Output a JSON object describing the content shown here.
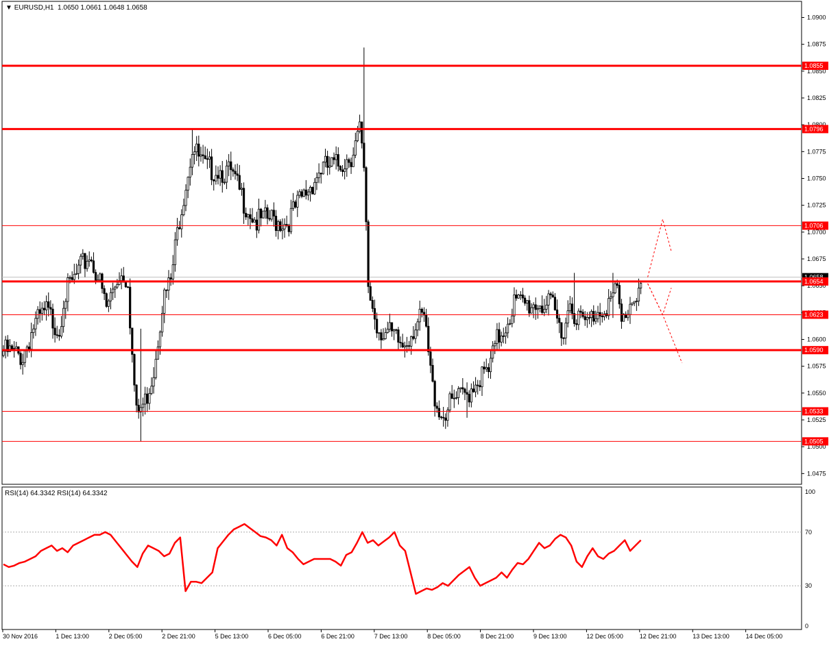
{
  "header": {
    "symbol": "EURUSD,H1",
    "ohlc": "1.0650 1.0661 1.0648 1.0658"
  },
  "rsi_header": "RSI(14) 64.3342  RSI(14) 64.3342",
  "colors": {
    "background": "#ffffff",
    "candle": "#000000",
    "level_line": "#ff0000",
    "rsi_line": "#ff0000",
    "label_bg": "#ff0000",
    "label_text": "#ffffff"
  },
  "chart_data": [
    {
      "type": "candlestick",
      "title": "EURUSD,H1",
      "ylim": [
        1.0465,
        1.0915
      ],
      "y_ticks": [
        "1.0475",
        "1.0500",
        "1.0525",
        "1.0550",
        "1.0575",
        "1.0600",
        "1.0625",
        "1.0650",
        "1.0675",
        "1.0700",
        "1.0725",
        "1.0750",
        "1.0775",
        "1.0800",
        "1.0825",
        "1.0850",
        "1.0875",
        "1.0900"
      ],
      "current_price": "1.0658",
      "x_ticks": [
        "30 Nov 2016",
        "1 Dec 13:00",
        "2 Dec 05:00",
        "2 Dec 21:00",
        "5 Dec 13:00",
        "6 Dec 05:00",
        "6 Dec 21:00",
        "7 Dec 13:00",
        "8 Dec 05:00",
        "8 Dec 21:00",
        "9 Dec 13:00",
        "12 Dec 05:00",
        "12 Dec 21:00",
        "13 Dec 13:00",
        "14 Dec 05:00"
      ],
      "levels": [
        {
          "price": 1.0855,
          "label": "1.0855",
          "weight": "thick"
        },
        {
          "price": 1.0796,
          "label": "1.0796",
          "weight": "thick"
        },
        {
          "price": 1.0706,
          "label": "1.0706",
          "weight": "thin"
        },
        {
          "price": 1.0654,
          "label": "1.0654",
          "weight": "thick"
        },
        {
          "price": 1.0623,
          "label": "1.0623",
          "weight": "thin"
        },
        {
          "price": 1.059,
          "label": "1.0590",
          "weight": "thick"
        },
        {
          "price": 1.0533,
          "label": "1.0533",
          "weight": "thin"
        },
        {
          "price": 1.0505,
          "label": "1.0505",
          "weight": "thin"
        }
      ],
      "anchors": [
        [
          0,
          1.0595
        ],
        [
          9,
          1.059
        ],
        [
          14,
          1.0618
        ],
        [
          20,
          1.0632
        ],
        [
          26,
          1.0615
        ],
        [
          28,
          1.0645
        ],
        [
          34,
          1.0665
        ],
        [
          40,
          1.0685
        ],
        [
          44,
          1.0665
        ],
        [
          48,
          1.0635
        ],
        [
          54,
          1.0668
        ],
        [
          58,
          1.0663
        ],
        [
          60,
          1.059
        ],
        [
          62,
          1.0535
        ],
        [
          66,
          1.0548
        ],
        [
          70,
          1.0578
        ],
        [
          74,
          1.064
        ],
        [
          78,
          1.066
        ],
        [
          82,
          1.072
        ],
        [
          88,
          1.0785
        ],
        [
          94,
          1.0765
        ],
        [
          100,
          1.0765
        ],
        [
          106,
          1.076
        ],
        [
          112,
          1.0735
        ],
        [
          118,
          1.0715
        ],
        [
          124,
          1.0718
        ],
        [
          132,
          1.0715
        ],
        [
          140,
          1.074
        ],
        [
          148,
          1.0765
        ],
        [
          156,
          1.0768
        ],
        [
          162,
          1.0778
        ],
        [
          166,
          1.08
        ],
        [
          168,
          1.076
        ],
        [
          170,
          1.0655
        ],
        [
          174,
          1.0618
        ],
        [
          180,
          1.061
        ],
        [
          186,
          1.06
        ],
        [
          192,
          1.062
        ],
        [
          196,
          1.0625
        ],
        [
          200,
          1.056
        ],
        [
          204,
          1.0535
        ],
        [
          210,
          1.0548
        ],
        [
          216,
          1.0555
        ],
        [
          220,
          1.0568
        ],
        [
          226,
          1.0575
        ],
        [
          230,
          1.0605
        ],
        [
          234,
          1.062
        ],
        [
          238,
          1.064
        ],
        [
          244,
          1.0638
        ],
        [
          250,
          1.064
        ],
        [
          256,
          1.0635
        ],
        [
          260,
          1.0612
        ],
        [
          264,
          1.064
        ],
        [
          268,
          1.0625
        ],
        [
          272,
          1.062
        ],
        [
          276,
          1.0632
        ],
        [
          282,
          1.064
        ],
        [
          286,
          1.065
        ],
        [
          288,
          1.062
        ],
        [
          292,
          1.064
        ],
        [
          295,
          1.065
        ],
        [
          297,
          1.0658
        ]
      ],
      "wicks": [
        {
          "bar": 64,
          "high": 1.061,
          "low": 1.0505
        },
        {
          "bar": 168,
          "high": 1.0872,
          "low": 1.076
        },
        {
          "bar": 88,
          "high": 1.0796,
          "low": 1.077
        },
        {
          "bar": 216,
          "high": 1.056,
          "low": 1.0527
        },
        {
          "bar": 266,
          "high": 1.0662,
          "low": 1.0612
        },
        {
          "bar": 284,
          "high": 1.0662,
          "low": 1.062
        }
      ],
      "projection_arrows": [
        [
          [
            1.0658,
            0
          ],
          [
            1.0712,
            7
          ],
          [
            1.0682,
            11
          ]
        ],
        [
          [
            1.0652,
            0
          ],
          [
            1.0623,
            7
          ],
          [
            1.0648,
            11
          ]
        ],
        [
          [
            1.0652,
            0
          ],
          [
            1.0623,
            7
          ],
          [
            1.0578,
            16
          ]
        ]
      ]
    },
    {
      "type": "line",
      "title": "RSI(14) 64.3342",
      "ylim": [
        0,
        100
      ],
      "y_ticks": [
        "0",
        "30",
        "70",
        "100"
      ],
      "reference_levels": [
        30,
        70
      ],
      "series": [
        {
          "name": "RSI(14)",
          "values": [
            46,
            44,
            45,
            47,
            48,
            50,
            52,
            56,
            58,
            60,
            56,
            58,
            55,
            60,
            62,
            64,
            66,
            68,
            68,
            70,
            68,
            63,
            58,
            53,
            48,
            44,
            54,
            60,
            58,
            56,
            52,
            54,
            62,
            66,
            26,
            33,
            33,
            32,
            36,
            40,
            58,
            63,
            68,
            72,
            74,
            76,
            73,
            70,
            67,
            66,
            64,
            60,
            68,
            58,
            55,
            50,
            46,
            48,
            50,
            50,
            50,
            50,
            48,
            45,
            53,
            55,
            62,
            70,
            62,
            64,
            60,
            63,
            66,
            70,
            60,
            56,
            40,
            24,
            26,
            28,
            27,
            29,
            32,
            30,
            34,
            38,
            41,
            44,
            36,
            30,
            32,
            34,
            36,
            40,
            36,
            42,
            47,
            46,
            50,
            56,
            62,
            58,
            60,
            65,
            68,
            66,
            60,
            48,
            44,
            52,
            58,
            52,
            50,
            54,
            56,
            60,
            64,
            56,
            60,
            64
          ]
        }
      ]
    }
  ]
}
